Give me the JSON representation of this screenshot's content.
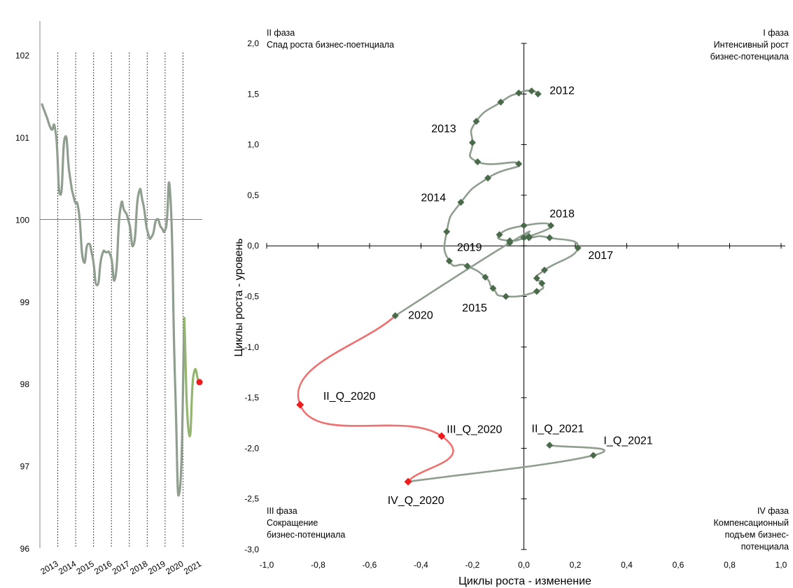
{
  "colors": {
    "line": "#8f9e8f",
    "line_dark": "#6d7f6d",
    "marker": "#4a6b4a",
    "red": "#f07070",
    "red_marker": "#ee1c1c",
    "green_seg": "#93b56f"
  },
  "chart_data": [
    {
      "type": "line",
      "title": "",
      "ylim": [
        96,
        102.5
      ],
      "yticks": [
        "102",
        "101",
        "100",
        "99",
        "98",
        "97",
        "96"
      ],
      "years": [
        "2013",
        "2014",
        "2015",
        "2016",
        "2017",
        "2018",
        "2019",
        "2020",
        "2021"
      ],
      "reference_line": 100,
      "series": [
        {
          "values": [
            101.4,
            101.25,
            101.1,
            101.05,
            100.3,
            101.0,
            100.55,
            100.25,
            100.1,
            99.5,
            99.7,
            99.55,
            99.2,
            99.55,
            99.6,
            99.55,
            99.3,
            100.1,
            100.1,
            99.95,
            99.7,
            100.3,
            100.2,
            99.85,
            99.8,
            100.0,
            99.9,
            99.9,
            100.25,
            98.0,
            96.7,
            98.8,
            97.4,
            98.1,
            98.05
          ]
        }
      ],
      "highlight_point": 98.02
    },
    {
      "type": "scatter",
      "xlabel": "Циклы роста - изменение",
      "ylabel": "Циклы роста - уровень",
      "xlim": [
        -1.0,
        1.0
      ],
      "ylim": [
        -3.0,
        2.0
      ],
      "xticks": [
        "-1,0",
        "-0,8",
        "-0,6",
        "-0,4",
        "-0,2",
        "0,0",
        "0,2",
        "0,4",
        "0,6",
        "0,8",
        "1,0"
      ],
      "yticks": [
        "2,0",
        "1,5",
        "1,0",
        "0,5",
        "0,0",
        "-0,5",
        "-1,0",
        "-1,5",
        "-2,0",
        "-2,5",
        "-3,0"
      ],
      "quadrant_labels": {
        "q1": [
          "I фаза",
          "Интенсивный рост",
          "бизнес-потенциала"
        ],
        "q2": [
          "II  фаза",
          "Спад роста бизнес-поетнциала"
        ],
        "q3": [
          "III фаза",
          "Сокращение",
          "бизнес-потенциала"
        ],
        "q4": [
          "IV фаза",
          "Компенсационный",
          "подъем бизнес-",
          "потенциала"
        ]
      },
      "path_points": [
        {
          "x": 0.055,
          "y": 1.5
        },
        {
          "x": 0.03,
          "y": 1.53
        },
        {
          "x": -0.02,
          "y": 1.51
        },
        {
          "x": -0.09,
          "y": 1.42
        },
        {
          "x": -0.185,
          "y": 1.23
        },
        {
          "x": -0.2,
          "y": 1.02
        },
        {
          "x": -0.18,
          "y": 0.83
        },
        {
          "x": -0.02,
          "y": 0.81
        },
        {
          "x": -0.14,
          "y": 0.67
        },
        {
          "x": -0.245,
          "y": 0.43
        },
        {
          "x": -0.3,
          "y": 0.14
        },
        {
          "x": -0.29,
          "y": -0.15
        },
        {
          "x": -0.22,
          "y": -0.2
        },
        {
          "x": -0.15,
          "y": -0.31
        },
        {
          "x": -0.12,
          "y": -0.42
        },
        {
          "x": -0.07,
          "y": -0.5
        },
        {
          "x": 0.05,
          "y": -0.45
        },
        {
          "x": 0.07,
          "y": -0.37
        },
        {
          "x": 0.05,
          "y": -0.32
        },
        {
          "x": 0.08,
          "y": -0.24
        },
        {
          "x": 0.21,
          "y": -0.02
        },
        {
          "x": 0.1,
          "y": 0.08
        },
        {
          "x": 0.02,
          "y": 0.08
        },
        {
          "x": -0.055,
          "y": 0.05
        },
        {
          "x": -0.095,
          "y": 0.11
        },
        {
          "x": 0.0,
          "y": 0.2
        },
        {
          "x": 0.105,
          "y": 0.2
        },
        {
          "x": 0.02,
          "y": 0.09
        },
        {
          "x": 0.0,
          "y": 0.08
        },
        {
          "x": -0.055,
          "y": 0.03
        },
        {
          "x": -0.5,
          "y": -0.69
        }
      ],
      "red_points": [
        {
          "x": -0.5,
          "y": -0.69
        },
        {
          "x": -0.87,
          "y": -1.57
        },
        {
          "x": -0.32,
          "y": -1.88
        },
        {
          "x": -0.45,
          "y": -2.33
        }
      ],
      "final_points": [
        {
          "x": -0.45,
          "y": -2.33
        },
        {
          "x": 0.27,
          "y": -2.07
        },
        {
          "x": 0.1,
          "y": -1.97
        }
      ],
      "annotations": [
        {
          "text": "2012",
          "x": 0.1,
          "y": 1.5
        },
        {
          "text": "2013",
          "x": -0.36,
          "y": 1.12
        },
        {
          "text": "2014",
          "x": -0.4,
          "y": 0.44
        },
        {
          "text": "2018",
          "x": 0.1,
          "y": 0.28
        },
        {
          "text": "2019",
          "x": -0.26,
          "y": -0.05
        },
        {
          "text": "2017",
          "x": 0.25,
          "y": -0.13
        },
        {
          "text": "2015",
          "x": -0.24,
          "y": -0.65
        },
        {
          "text": "2020",
          "x": -0.45,
          "y": -0.72
        },
        {
          "text": "II_Q_2020",
          "x": -0.78,
          "y": -1.52
        },
        {
          "text": "III_Q_2020",
          "x": -0.3,
          "y": -1.85
        },
        {
          "text": "II_Q_2021",
          "x": 0.03,
          "y": -1.84
        },
        {
          "text": "I_Q_2021",
          "x": 0.31,
          "y": -1.96
        },
        {
          "text": "IV_Q_2020",
          "x": -0.53,
          "y": -2.55
        }
      ]
    }
  ]
}
